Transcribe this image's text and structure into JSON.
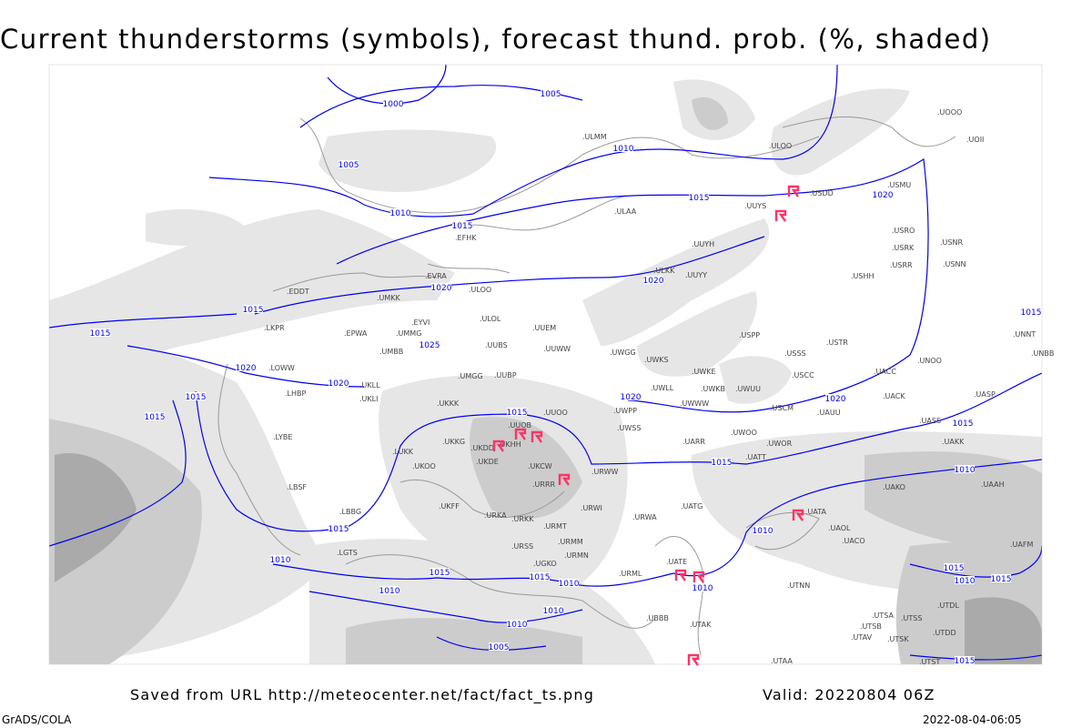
{
  "title": "Current thunderstorms (symbols), forecast thund. prob. (%, shaded)",
  "footer": {
    "source": "Saved from URL http://meteocenter.net/fact/fact_ts.png",
    "valid": "Valid: 20220804 06Z",
    "software": "GrADS/COLA",
    "timestamp": "2022-08-04-06:05"
  },
  "colors": {
    "isobar": "#0000ee",
    "storm_symbol": "#ff3366",
    "shading_light": "#e6e6e6",
    "shading_mid": "#cccccc",
    "shading_dark": "#aaaaaa",
    "coast": "#999999"
  },
  "map": {
    "isobar_labels": [
      "1000",
      "1005",
      "1005",
      "1010",
      "1010",
      "1015",
      "1015",
      "1020",
      "1020",
      "1020",
      "1015",
      "1015",
      "1020",
      "1025",
      "1020",
      "1015",
      "1015",
      "1015",
      "1020",
      "1020",
      "1015",
      "1015",
      "1010",
      "1010",
      "1015",
      "1010",
      "1015",
      "1015",
      "1010",
      "1010",
      "1010",
      "1010",
      "1010",
      "1005",
      "1015",
      "1015",
      "1010",
      "1015",
      "1015"
    ],
    "stations": [
      "ULMM",
      "ULOO",
      "USDD",
      "UUYS",
      "ULAA",
      "EFHK",
      "UUYH",
      "USHH",
      "ULKK",
      "UUYY",
      "EVRA",
      "ULOO",
      "UMKK",
      "EDDT",
      "ULOL",
      "UUEM",
      "EYVI",
      "EPWA",
      "UMMG",
      "LKPR",
      "UMBB",
      "UUBS",
      "UUWW",
      "UWGG",
      "UWKS",
      "USSS",
      "USTR",
      "USPP",
      "LOWW",
      "UKLL",
      "UMGG",
      "UUBP",
      "UWKE",
      "UWKB",
      "UWUU",
      "USCC",
      "UACC",
      "UNOO",
      "UKLI",
      "LHBP",
      "UWLL",
      "UWWW",
      "USCM",
      "UAUU",
      "UACK",
      "UASP",
      "UKKK",
      "UUOO",
      "UWPP",
      "UUOB",
      "UWSS",
      "UAKK",
      "UASS",
      "UWOO",
      "UWOR",
      "UATT",
      "UARR",
      "UKHH",
      "UKDD",
      "UKKG",
      "LUKK",
      "UKDE",
      "UKCW",
      "URWW",
      "URRR",
      "UKOO",
      "UKFF",
      "URKA",
      "URKK",
      "URWI",
      "URWA",
      "UATG",
      "UATA",
      "UAOL",
      "UACO",
      "UAKO",
      "UAAH",
      "UAFM",
      "URMT",
      "URMM",
      "URSS",
      "URMN",
      "URML",
      "UATE",
      "LBSF",
      "LBBG",
      "LYBE",
      "LGTS",
      "UGKO",
      "UTNN",
      "UTAK",
      "UBBB",
      "UTAA",
      "UTSA",
      "UTSB",
      "UTSS",
      "UTDL",
      "UTDD",
      "UTSK",
      "UTAV",
      "UTST",
      "UOOO",
      "UOII",
      "USMU",
      "USRO",
      "USRK",
      "USNR",
      "USRR",
      "USNN",
      "UNNT",
      "UNBB"
    ],
    "thunderstorm_symbol_count": 10
  }
}
